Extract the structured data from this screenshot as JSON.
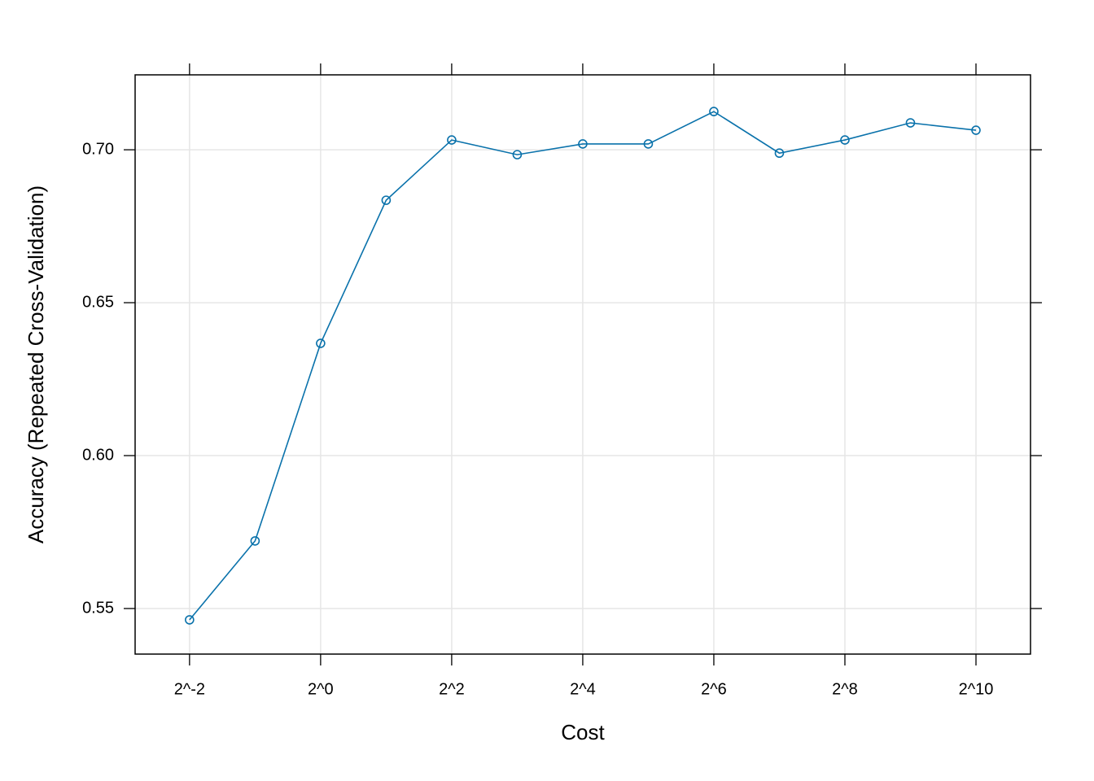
{
  "chart_data": {
    "type": "line",
    "x_label": "Cost",
    "y_label": "Accuracy (Repeated Cross-Validation)",
    "x": [
      0.25,
      0.5,
      1,
      2,
      4,
      8,
      16,
      32,
      64,
      128,
      256,
      512,
      1024
    ],
    "values": [
      0.5463,
      0.5721,
      0.6367,
      0.6835,
      0.7032,
      0.6984,
      0.7019,
      0.7019,
      0.7125,
      0.6989,
      0.7032,
      0.7088,
      0.7064
    ],
    "color": "#0a72ab",
    "xscale": "log",
    "xlog_base": 2,
    "xlim": [
      0.1406,
      1823
    ],
    "ylim": [
      0.5351,
      0.7245
    ],
    "xticks": [
      {
        "value": 0.25,
        "label": "2^-2"
      },
      {
        "value": 1,
        "label": "2^0"
      },
      {
        "value": 4,
        "label": "2^2"
      },
      {
        "value": 16,
        "label": "2^4"
      },
      {
        "value": 64,
        "label": "2^6"
      },
      {
        "value": 256,
        "label": "2^8"
      },
      {
        "value": 1024,
        "label": "2^10"
      }
    ],
    "yticks": [
      0.55,
      {
        "value": 0.6,
        "label": "0.60"
      },
      0.65,
      {
        "value": 0.7,
        "label": "0.70"
      }
    ],
    "grid": true
  }
}
